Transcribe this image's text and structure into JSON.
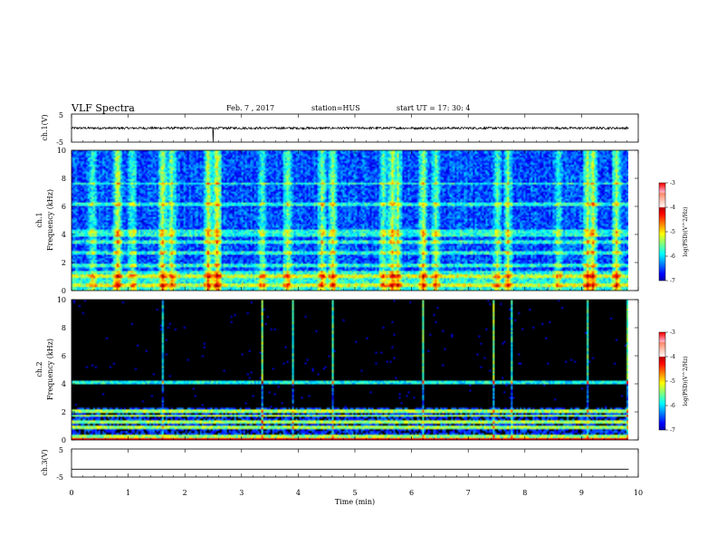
{
  "header": {
    "title": "VLF Spectra",
    "date": "Feb. 7 , 2017",
    "station": "station=HUS",
    "start": "start  UT =   17: 30: 4"
  },
  "chart_data": [
    {
      "type": "line",
      "panel": "waveform-ch1",
      "ylabel": "ch.1(V)",
      "yticks": [
        "5",
        "-5"
      ],
      "ylim": [
        -5,
        5
      ],
      "xlim": [
        0,
        10
      ],
      "baseline": 0,
      "noise_amplitude": 0.4,
      "spike_times": [
        2.5
      ],
      "color": "#000000"
    },
    {
      "type": "heatmap",
      "panel": "spectrogram-ch1",
      "ylabel": "Frequency (kHz)",
      "channel_label": "ch.1",
      "yticks": [
        "0",
        "2",
        "4",
        "6",
        "8",
        "10"
      ],
      "ylim": [
        0,
        10
      ],
      "xlim": [
        0,
        10
      ],
      "background_level": -6.5,
      "horizontal_bands_khz": [
        0.5,
        1.1,
        1.9,
        2.8,
        3.5,
        4.0,
        4.3,
        6.2,
        7.7
      ],
      "vertical_bursts_min": [
        0.35,
        0.8,
        1.05,
        1.6,
        1.75,
        2.4,
        2.55,
        3.35,
        3.8,
        4.4,
        4.6,
        5.5,
        5.65,
        5.75,
        6.2,
        6.4,
        7.5,
        7.7,
        8.6,
        9.1,
        9.2,
        9.6
      ],
      "colorbar": {
        "label": "log(PSD)(V^2/Hz)",
        "ticks": [
          "-3",
          "-4",
          "-5",
          "-6",
          "-7"
        ],
        "range": [
          -7,
          -3
        ]
      }
    },
    {
      "type": "heatmap",
      "panel": "spectrogram-ch2",
      "ylabel": "Frequency (kHz)",
      "channel_label": "ch.2",
      "yticks": [
        "0",
        "2",
        "4",
        "6",
        "8",
        "10"
      ],
      "ylim": [
        0,
        10
      ],
      "xlim": [
        0,
        10
      ],
      "background_level": -7.2,
      "horizontal_bands_khz": [
        0.3,
        1.0,
        1.4,
        1.8,
        2.1,
        4.2
      ],
      "vertical_bursts_min": [
        1.6,
        3.35,
        3.9,
        4.6,
        6.2,
        7.45,
        7.75,
        9.1,
        9.8
      ],
      "colorbar": {
        "label": "log(PSD)(V^2/Hz)",
        "ticks": [
          "-3",
          "-4",
          "-5",
          "-6",
          "-7"
        ],
        "range": [
          -7,
          -3
        ]
      }
    },
    {
      "type": "line",
      "panel": "waveform-ch3",
      "ylabel": "ch.3(V)",
      "yticks": [
        "5",
        "-5"
      ],
      "ylim": [
        -5,
        5
      ],
      "xlim": [
        0,
        10
      ],
      "baseline": -2.2,
      "noise_amplitude": 0,
      "color": "#000000"
    }
  ],
  "xaxis": {
    "label": "Time (min)",
    "ticks": [
      "0",
      "1",
      "2",
      "3",
      "4",
      "5",
      "6",
      "7",
      "8",
      "9",
      "10"
    ],
    "range": [
      0,
      10
    ]
  }
}
